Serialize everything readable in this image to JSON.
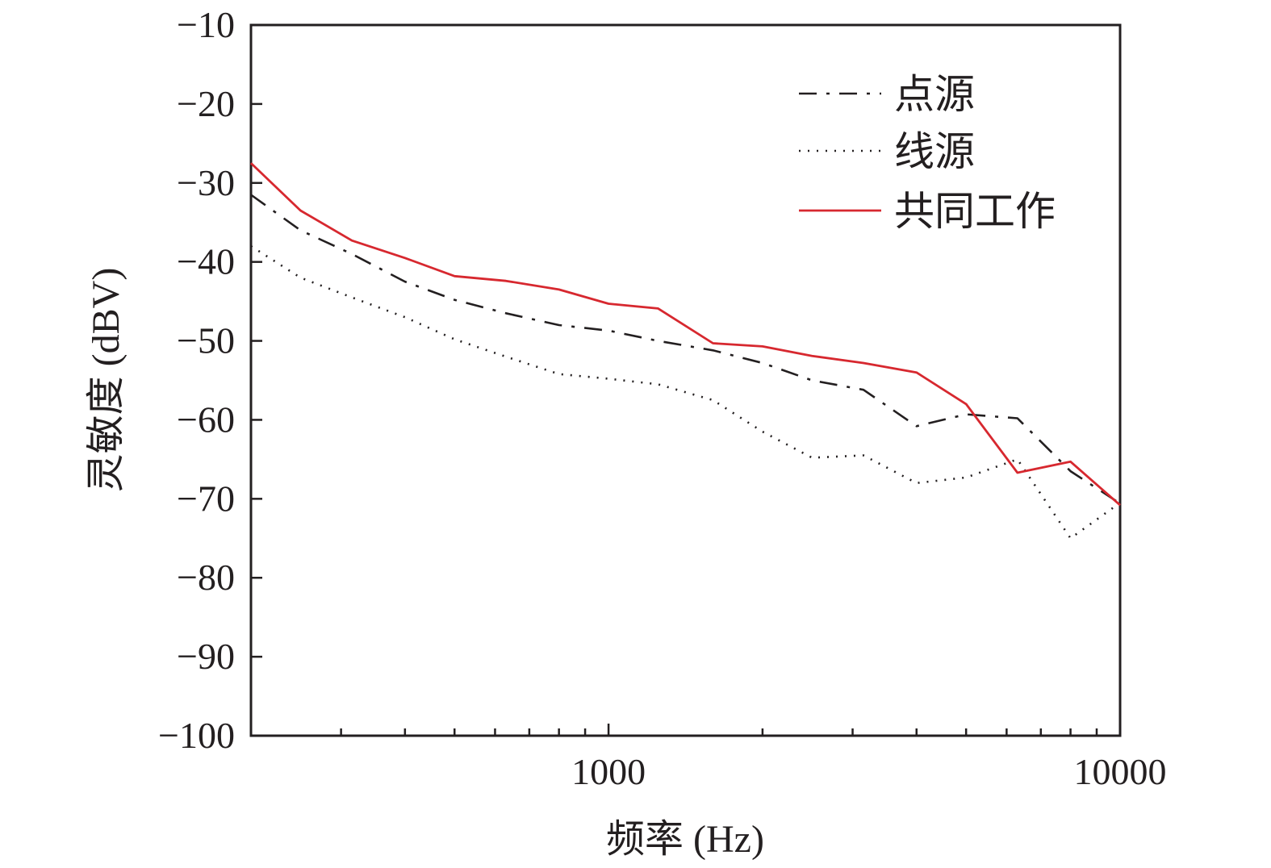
{
  "chart_data": {
    "type": "line",
    "xlabel": "频率 (Hz)",
    "ylabel": "灵敏度 (dBV)",
    "x_scale": "log",
    "xlim": [
      200,
      10000
    ],
    "ylim": [
      -100,
      -10
    ],
    "x_ticks": [
      {
        "value": 1000,
        "label": "1000"
      },
      {
        "value": 10000,
        "label": "10000"
      }
    ],
    "x_minor_ticks": [
      300,
      400,
      500,
      600,
      700,
      800,
      900,
      2000,
      3000,
      4000,
      5000,
      6000,
      7000,
      8000,
      9000
    ],
    "y_ticks": [
      {
        "value": -10,
        "label": "−10"
      },
      {
        "value": -20,
        "label": "−20"
      },
      {
        "value": -30,
        "label": "−30"
      },
      {
        "value": -40,
        "label": "−40"
      },
      {
        "value": -50,
        "label": "−50"
      },
      {
        "value": -60,
        "label": "−60"
      },
      {
        "value": -70,
        "label": "−70"
      },
      {
        "value": -80,
        "label": "−80"
      },
      {
        "value": -90,
        "label": "−90"
      },
      {
        "value": -100,
        "label": "−100"
      }
    ],
    "grid": false,
    "legend_position": "top-right",
    "series": [
      {
        "name": "点源",
        "color": "#231f20",
        "style": "dashdot",
        "x": [
          200,
          250,
          315,
          400,
          500,
          630,
          800,
          1000,
          1250,
          1600,
          2000,
          2500,
          3150,
          4000,
          5000,
          6300,
          8000,
          10000
        ],
        "y": [
          -31.5,
          -36,
          -39,
          -42.5,
          -44.8,
          -46.5,
          -48,
          -48.7,
          -50,
          -51.2,
          -52.8,
          -55,
          -56.2,
          -60.8,
          -59.3,
          -59.8,
          -66.5,
          -70.6
        ]
      },
      {
        "name": "线源",
        "color": "#231f20",
        "style": "dotted",
        "x": [
          200,
          250,
          315,
          400,
          500,
          630,
          800,
          1000,
          1250,
          1600,
          2000,
          2500,
          3150,
          4000,
          5000,
          6300,
          8000,
          10000
        ],
        "y": [
          -38,
          -42,
          -44.5,
          -47,
          -49.8,
          -52,
          -54.2,
          -54.8,
          -55.5,
          -57.5,
          -61.5,
          -64.8,
          -64.5,
          -68,
          -67.3,
          -65,
          -75,
          -70.5
        ]
      },
      {
        "name": "共同工作",
        "color": "#d7282f",
        "style": "solid",
        "x": [
          200,
          250,
          315,
          400,
          500,
          630,
          800,
          1000,
          1250,
          1600,
          2000,
          2500,
          3150,
          4000,
          5000,
          6300,
          8000,
          10000
        ],
        "y": [
          -27.5,
          -33.5,
          -37.3,
          -39.5,
          -41.8,
          -42.4,
          -43.5,
          -45.3,
          -45.9,
          -50.3,
          -50.7,
          -51.9,
          -52.8,
          -54,
          -58,
          -66.7,
          -65.3,
          -70.8
        ]
      }
    ]
  }
}
